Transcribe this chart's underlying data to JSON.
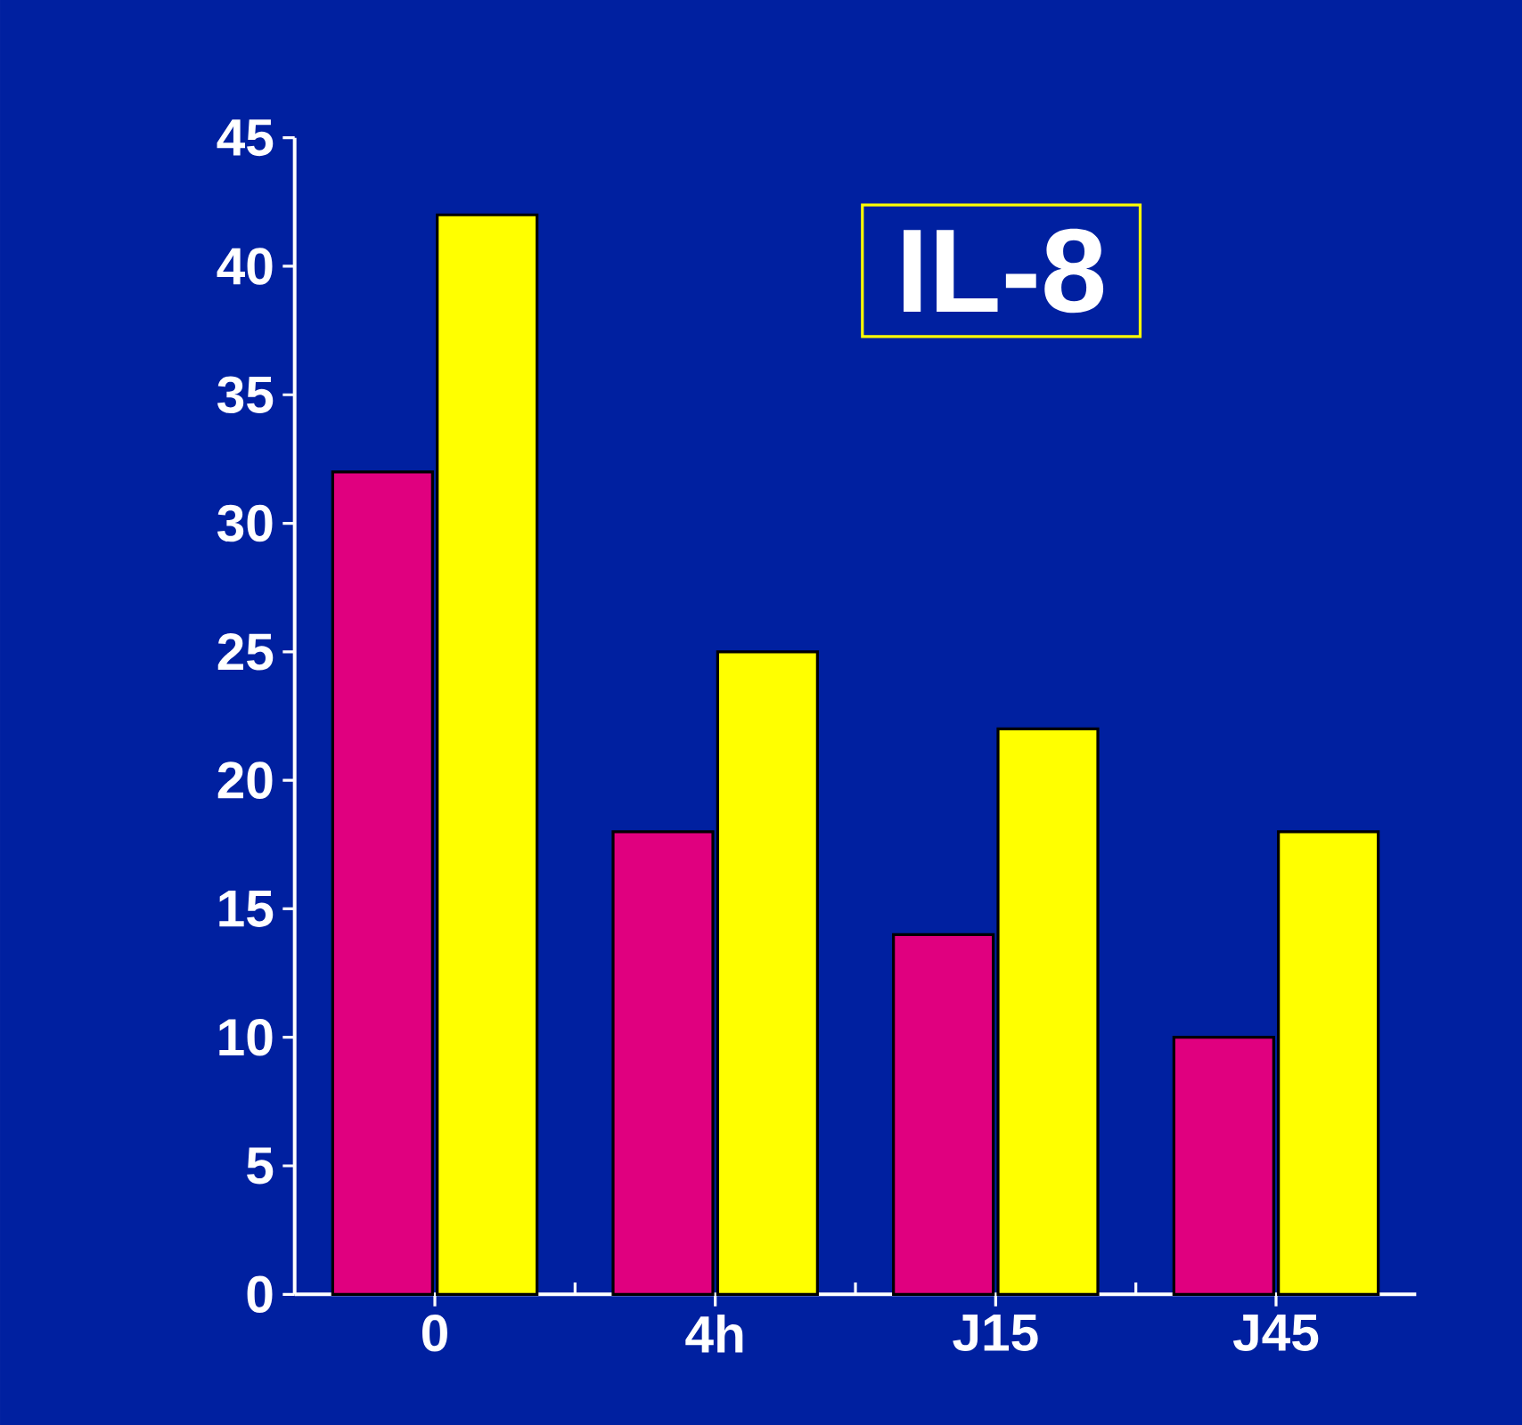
{
  "chart_data": {
    "type": "bar",
    "title": "IL-8",
    "categories": [
      "0",
      "4h",
      "J15",
      "J45"
    ],
    "series": [
      {
        "color": "#e0007f",
        "values": [
          32,
          18,
          14,
          10
        ]
      },
      {
        "color": "#ffff00",
        "values": [
          42,
          25,
          22,
          18
        ]
      }
    ],
    "ylim": [
      0,
      45
    ],
    "yticks": [
      0,
      5,
      10,
      15,
      20,
      25,
      30,
      35,
      40,
      45
    ],
    "grid": false
  }
}
